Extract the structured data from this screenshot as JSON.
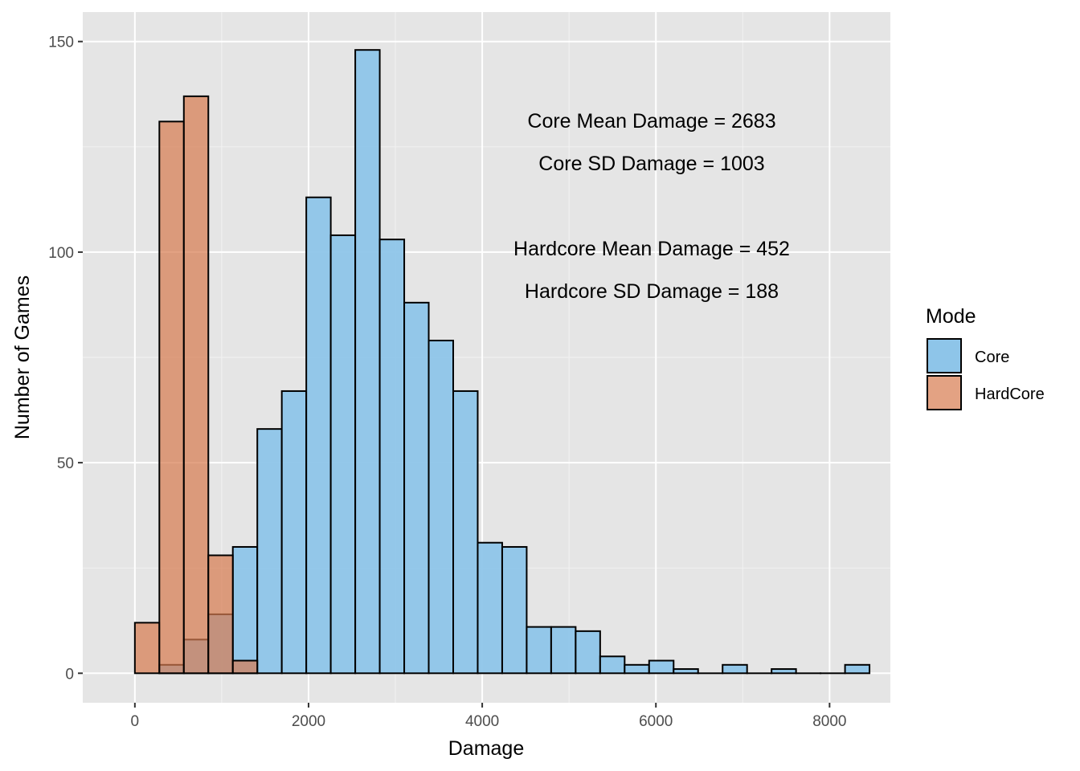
{
  "chart_data": {
    "type": "bar",
    "subtype": "overlapping-histogram",
    "title": "",
    "xlabel": "Damage",
    "ylabel": "Number of Games",
    "xlim": [
      -600,
      8700
    ],
    "ylim": [
      -7,
      157
    ],
    "x_ticks": [
      0,
      2000,
      4000,
      6000,
      8000
    ],
    "y_ticks": [
      0,
      50,
      100,
      150
    ],
    "x_tick_labels": [
      "0",
      "2000",
      "4000",
      "6000",
      "8000"
    ],
    "y_tick_labels": [
      "0",
      "50",
      "100",
      "150"
    ],
    "grid": true,
    "bin_width": 282,
    "legend": {
      "title": "Mode",
      "position": "right",
      "entries": [
        "Core",
        "HardCore"
      ]
    },
    "series": [
      {
        "name": "Core",
        "color": "#8ec5e9",
        "bins": [
          {
            "x": 423,
            "count": 2
          },
          {
            "x": 705,
            "count": 8
          },
          {
            "x": 987,
            "count": 14
          },
          {
            "x": 1269,
            "count": 30
          },
          {
            "x": 1551,
            "count": 58
          },
          {
            "x": 1833,
            "count": 67
          },
          {
            "x": 2115,
            "count": 113
          },
          {
            "x": 2397,
            "count": 104
          },
          {
            "x": 2679,
            "count": 148
          },
          {
            "x": 2961,
            "count": 103
          },
          {
            "x": 3243,
            "count": 88
          },
          {
            "x": 3525,
            "count": 79
          },
          {
            "x": 3807,
            "count": 67
          },
          {
            "x": 4089,
            "count": 31
          },
          {
            "x": 4371,
            "count": 30
          },
          {
            "x": 4653,
            "count": 11
          },
          {
            "x": 4935,
            "count": 11
          },
          {
            "x": 5217,
            "count": 10
          },
          {
            "x": 5499,
            "count": 4
          },
          {
            "x": 5781,
            "count": 2
          },
          {
            "x": 6063,
            "count": 3
          },
          {
            "x": 6345,
            "count": 1
          },
          {
            "x": 6627,
            "count": 0
          },
          {
            "x": 6909,
            "count": 2
          },
          {
            "x": 7191,
            "count": 0
          },
          {
            "x": 7473,
            "count": 1
          },
          {
            "x": 7755,
            "count": 0
          },
          {
            "x": 8037,
            "count": 0
          },
          {
            "x": 8319,
            "count": 2
          }
        ]
      },
      {
        "name": "HardCore",
        "color": "#d77b4f",
        "bins": [
          {
            "x": 141,
            "count": 12
          },
          {
            "x": 423,
            "count": 131
          },
          {
            "x": 705,
            "count": 137
          },
          {
            "x": 987,
            "count": 28
          },
          {
            "x": 1269,
            "count": 3
          }
        ]
      }
    ],
    "annotations": [
      "Core Mean Damage =  2683",
      "Core SD Damage =  1003",
      "Hardcore Mean Damage =  452",
      "Hardcore SD Damage =  188"
    ]
  }
}
